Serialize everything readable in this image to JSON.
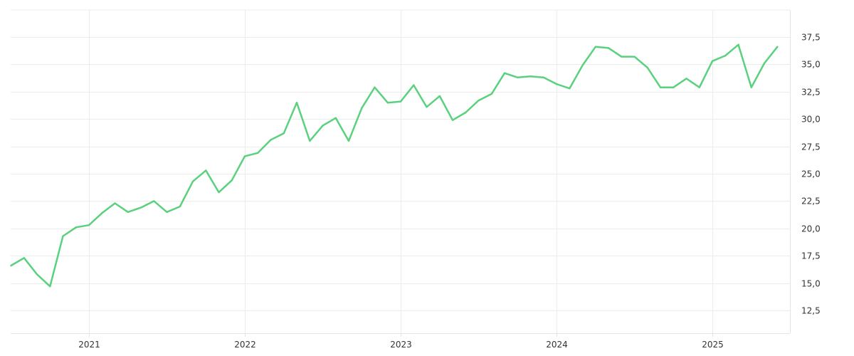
{
  "chart_data": {
    "type": "line",
    "title": "",
    "xlabel": "",
    "ylabel": "",
    "x_tick_labels": [
      "2021",
      "2022",
      "2023",
      "2024",
      "2025"
    ],
    "y_tick_labels": [
      "12,5",
      "15,0",
      "17,5",
      "20,0",
      "22,5",
      "25,0",
      "27,5",
      "30,0",
      "32,5",
      "35,0",
      "37,5"
    ],
    "y_ticks": [
      12.5,
      15.0,
      17.5,
      20.0,
      22.5,
      25.0,
      27.5,
      30.0,
      32.5,
      35.0,
      37.5
    ],
    "xlim": [
      "2020-07",
      "2025-07"
    ],
    "ylim": [
      10.5,
      39.5
    ],
    "y_axis_position": "right",
    "grid": true,
    "legend": "none",
    "series": [
      {
        "color": "#5ad17e",
        "x": [
          "2020-07",
          "2020-08",
          "2020-09",
          "2020-10",
          "2020-11",
          "2020-12",
          "2021-01",
          "2021-02",
          "2021-03",
          "2021-04",
          "2021-05",
          "2021-06",
          "2021-07",
          "2021-08",
          "2021-09",
          "2021-10",
          "2021-11",
          "2021-12",
          "2022-01",
          "2022-02",
          "2022-03",
          "2022-04",
          "2022-05",
          "2022-06",
          "2022-07",
          "2022-08",
          "2022-09",
          "2022-10",
          "2022-11",
          "2022-12",
          "2023-01",
          "2023-02",
          "2023-03",
          "2023-04",
          "2023-05",
          "2023-06",
          "2023-07",
          "2023-08",
          "2023-09",
          "2023-10",
          "2023-11",
          "2023-12",
          "2024-01",
          "2024-02",
          "2024-03",
          "2024-04",
          "2024-05",
          "2024-06",
          "2024-07",
          "2024-08",
          "2024-09",
          "2024-10",
          "2024-11",
          "2024-12",
          "2025-01",
          "2025-02",
          "2025-03",
          "2025-04",
          "2025-05",
          "2025-06"
        ],
        "values": [
          16.6,
          17.3,
          15.8,
          14.7,
          19.3,
          20.1,
          20.3,
          21.4,
          22.3,
          21.5,
          21.9,
          22.5,
          21.5,
          22.0,
          24.3,
          25.3,
          23.3,
          24.4,
          26.6,
          26.9,
          28.1,
          28.7,
          31.5,
          28.0,
          29.4,
          30.1,
          28.0,
          31.0,
          32.9,
          31.5,
          31.6,
          33.1,
          31.1,
          32.1,
          29.9,
          30.6,
          31.7,
          32.3,
          34.2,
          33.8,
          33.9,
          33.8,
          33.2,
          32.8,
          34.9,
          36.6,
          36.5,
          35.7,
          35.7,
          34.7,
          32.9,
          32.9,
          33.7,
          32.9,
          35.3,
          35.8,
          36.8,
          32.9,
          35.1,
          36.6
        ]
      }
    ]
  }
}
